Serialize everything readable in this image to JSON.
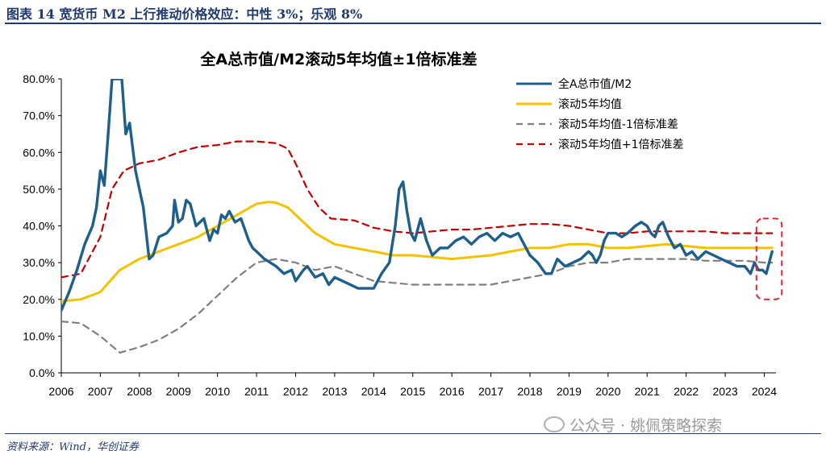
{
  "header": "图表 14 宽货币 M2 上行推动价格效应：中性 3%；乐观 8%",
  "source": "资料来源：Wind，华创证券",
  "watermark": "公众号 · 姚佩策略探索",
  "chart_data": {
    "type": "line",
    "title": "全A总市值/M2滚动5年均值±1倍标准差",
    "ylim": [
      0,
      80
    ],
    "yticks": [
      "0.0%",
      "10.0%",
      "20.0%",
      "30.0%",
      "40.0%",
      "50.0%",
      "60.0%",
      "70.0%",
      "80.0%"
    ],
    "xlim": [
      2006,
      2024.3
    ],
    "xticks": [
      "2006",
      "2007",
      "2008",
      "2009",
      "2010",
      "2011",
      "2012",
      "2013",
      "2014",
      "2015",
      "2016",
      "2017",
      "2018",
      "2019",
      "2020",
      "2021",
      "2022",
      "2023",
      "2024"
    ],
    "legend_position": "top-right",
    "series": [
      {
        "name": "全A总市值/M2",
        "color": "#1f5f8b",
        "style": "solid",
        "x": [
          2006.0,
          2006.2,
          2006.4,
          2006.6,
          2006.8,
          2006.9,
          2007.0,
          2007.1,
          2007.2,
          2007.3,
          2007.45,
          2007.55,
          2007.65,
          2007.75,
          2007.9,
          2008.1,
          2008.25,
          2008.35,
          2008.5,
          2008.7,
          2008.85,
          2008.9,
          2009.0,
          2009.1,
          2009.2,
          2009.3,
          2009.45,
          2009.55,
          2009.65,
          2009.8,
          2009.9,
          2010.0,
          2010.1,
          2010.2,
          2010.3,
          2010.45,
          2010.6,
          2010.8,
          2010.9,
          2011.0,
          2011.2,
          2011.35,
          2011.5,
          2011.7,
          2011.9,
          2012.0,
          2012.2,
          2012.3,
          2012.5,
          2012.7,
          2012.85,
          2013.0,
          2013.2,
          2013.4,
          2013.6,
          2013.8,
          2014.0,
          2014.2,
          2014.4,
          2014.55,
          2014.65,
          2014.75,
          2014.85,
          2014.95,
          2015.05,
          2015.2,
          2015.35,
          2015.5,
          2015.7,
          2015.9,
          2016.1,
          2016.3,
          2016.5,
          2016.7,
          2016.9,
          2017.1,
          2017.3,
          2017.5,
          2017.7,
          2017.8,
          2017.9,
          2018.0,
          2018.2,
          2018.4,
          2018.55,
          2018.7,
          2018.9,
          2019.1,
          2019.3,
          2019.5,
          2019.6,
          2019.7,
          2019.8,
          2019.9,
          2020.0,
          2020.2,
          2020.35,
          2020.5,
          2020.7,
          2020.85,
          2021.0,
          2021.1,
          2021.2,
          2021.3,
          2021.4,
          2021.55,
          2021.7,
          2021.85,
          2022.0,
          2022.15,
          2022.3,
          2022.5,
          2022.7,
          2022.9,
          2023.1,
          2023.3,
          2023.5,
          2023.65,
          2023.75,
          2023.85,
          2023.95,
          2024.05,
          2024.2
        ],
        "values": [
          17,
          22,
          28,
          35,
          40,
          45,
          55,
          51,
          65,
          80,
          80,
          80,
          65,
          68,
          55,
          45,
          31,
          32,
          37,
          38,
          40,
          47,
          41,
          42,
          47,
          46,
          40,
          41,
          42,
          36,
          39,
          38,
          43,
          42,
          44,
          41,
          42,
          36,
          34,
          33,
          31,
          30,
          29,
          27,
          28,
          25,
          28,
          29,
          26,
          27,
          24,
          26,
          25,
          24,
          23,
          23,
          23,
          27,
          30,
          40,
          50,
          52,
          44,
          38,
          36,
          42,
          36,
          32,
          34,
          34,
          36,
          37,
          35,
          37,
          38,
          36,
          38,
          37,
          38,
          36,
          34,
          32,
          30,
          27,
          27,
          31,
          29,
          30,
          31,
          33,
          32,
          30,
          32,
          36,
          38,
          38,
          37,
          38,
          40,
          41,
          40,
          38,
          37,
          40,
          41,
          37,
          34,
          35,
          32,
          33,
          31,
          33,
          32,
          31,
          30,
          29,
          29,
          27,
          30,
          28,
          28,
          27,
          33
        ]
      },
      {
        "name": "滚动5年均值",
        "color": "#f2c200",
        "style": "solid",
        "x": [
          2006.0,
          2006.5,
          2007.0,
          2007.5,
          2008.0,
          2008.5,
          2009.0,
          2009.5,
          2010.0,
          2010.5,
          2011.0,
          2011.3,
          2011.5,
          2011.8,
          2012.0,
          2012.5,
          2013.0,
          2013.5,
          2014.0,
          2014.5,
          2015.0,
          2015.5,
          2016.0,
          2016.5,
          2017.0,
          2017.5,
          2018.0,
          2018.5,
          2019.0,
          2019.5,
          2020.0,
          2020.5,
          2021.0,
          2021.5,
          2022.0,
          2022.5,
          2023.0,
          2023.5,
          2024.0,
          2024.2
        ],
        "values": [
          19.5,
          20,
          22,
          28,
          31,
          33,
          35,
          37,
          40,
          43,
          46,
          46.5,
          46.3,
          45,
          43,
          38,
          35,
          34,
          33,
          32,
          32,
          31.5,
          31,
          31.5,
          32,
          33,
          34,
          34,
          35,
          35,
          34,
          34,
          34.5,
          35,
          34.5,
          34,
          34,
          34,
          34,
          34
        ]
      },
      {
        "name": "滚动5年均值-1倍标准差",
        "color": "#7f7f7f",
        "style": "dashed",
        "x": [
          2006.0,
          2006.5,
          2007.0,
          2007.5,
          2008.0,
          2008.5,
          2009.0,
          2009.5,
          2010.0,
          2010.5,
          2011.0,
          2011.5,
          2012.0,
          2012.5,
          2013.0,
          2013.5,
          2014.0,
          2014.5,
          2015.0,
          2015.5,
          2016.0,
          2016.5,
          2017.0,
          2017.5,
          2018.0,
          2018.5,
          2019.0,
          2019.5,
          2020.0,
          2020.5,
          2021.0,
          2021.5,
          2022.0,
          2022.5,
          2023.0,
          2023.5,
          2024.0,
          2024.2
        ],
        "values": [
          14,
          13.5,
          10,
          5.5,
          7,
          9,
          12,
          16,
          21,
          26,
          30,
          31,
          30,
          28,
          29,
          27,
          25,
          24.5,
          24,
          24,
          24,
          24,
          24,
          25,
          26,
          27,
          29,
          30,
          30,
          31,
          31,
          31,
          31,
          30.5,
          30.5,
          30.5,
          30,
          30
        ]
      },
      {
        "name": "滚动5年均值+1倍标准差",
        "color": "#c00000",
        "style": "dashed",
        "x": [
          2006.0,
          2006.5,
          2007.0,
          2007.3,
          2007.6,
          2008.0,
          2008.5,
          2009.0,
          2009.5,
          2010.0,
          2010.5,
          2011.0,
          2011.5,
          2011.8,
          2012.0,
          2012.3,
          2012.6,
          2012.9,
          2013.5,
          2014.0,
          2014.5,
          2015.0,
          2015.5,
          2016.0,
          2016.5,
          2017.0,
          2017.5,
          2018.0,
          2018.5,
          2019.0,
          2019.5,
          2020.0,
          2020.5,
          2021.0,
          2021.5,
          2022.0,
          2022.5,
          2023.0,
          2023.5,
          2024.0,
          2024.2
        ],
        "values": [
          26,
          27,
          37,
          50,
          55,
          57,
          58,
          60,
          61.5,
          62,
          63,
          63,
          62.5,
          61,
          57,
          50,
          45,
          42,
          41.5,
          39.5,
          38.5,
          38,
          38.5,
          39,
          39,
          39.5,
          40,
          40.5,
          40.5,
          40,
          39,
          38,
          38,
          38.5,
          38.5,
          38.5,
          38.5,
          38,
          38,
          38,
          38
        ]
      }
    ],
    "annotations": [
      {
        "type": "dashed-box",
        "color": "#e8212e",
        "x_range": [
          2023.8,
          2024.45
        ],
        "y_range": [
          20,
          42
        ]
      }
    ]
  }
}
